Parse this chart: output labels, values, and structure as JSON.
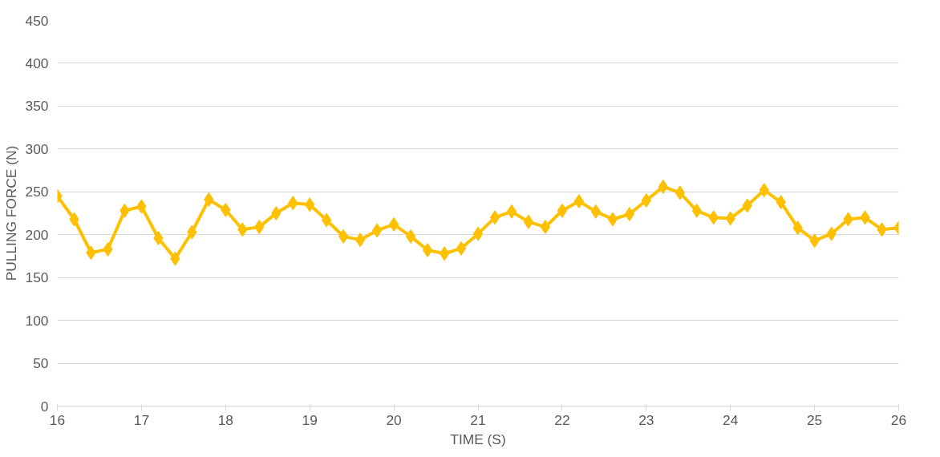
{
  "chart_data": {
    "type": "line",
    "xlabel": "TIME (S)",
    "ylabel": "PULLING FORCE (N)",
    "x": [
      16.0,
      16.2,
      16.4,
      16.6,
      16.8,
      17.0,
      17.2,
      17.4,
      17.6,
      17.8,
      18.0,
      18.2,
      18.4,
      18.6,
      18.8,
      19.0,
      19.2,
      19.4,
      19.6,
      19.8,
      20.0,
      20.2,
      20.4,
      20.6,
      20.8,
      21.0,
      21.2,
      21.4,
      21.6,
      21.8,
      22.0,
      22.2,
      22.4,
      22.6,
      22.8,
      23.0,
      23.2,
      23.4,
      23.6,
      23.8,
      24.0,
      24.2,
      24.4,
      24.6,
      24.8,
      25.0,
      25.2,
      25.4,
      25.6,
      25.8,
      26.0
    ],
    "series": [
      {
        "color": "#ffc000",
        "values": [
          245,
          218,
          179,
          183,
          228,
          233,
          196,
          172,
          203,
          241,
          229,
          206,
          209,
          225,
          237,
          235,
          217,
          198,
          194,
          205,
          212,
          198,
          182,
          178,
          184,
          201,
          220,
          227,
          215,
          209,
          228,
          239,
          227,
          218,
          224,
          240,
          256,
          249,
          228,
          220,
          219,
          234,
          252,
          238,
          208,
          193,
          201,
          218,
          220,
          206,
          208
        ]
      }
    ],
    "xlim": [
      16,
      26
    ],
    "xticks": [
      16,
      17,
      18,
      19,
      20,
      21,
      22,
      23,
      24,
      25,
      26
    ],
    "ylim": [
      0,
      450
    ],
    "yticks": [
      0,
      50,
      100,
      150,
      200,
      250,
      300,
      350,
      400,
      450
    ],
    "grid": "y",
    "marker": "diamond",
    "line_style": "solid"
  }
}
